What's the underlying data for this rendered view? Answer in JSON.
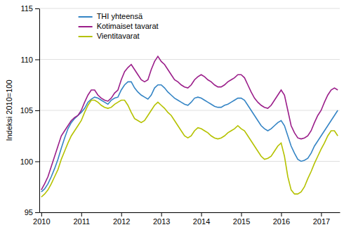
{
  "chart_data": {
    "type": "line",
    "ylabel": "Indeksi 2010=100",
    "x": [
      2010,
      2010.0833,
      2010.1667,
      2010.25,
      2010.3333,
      2010.4167,
      2010.5,
      2010.5833,
      2010.6667,
      2010.75,
      2010.8333,
      2010.9167,
      2011,
      2011.0833,
      2011.1667,
      2011.25,
      2011.3333,
      2011.4167,
      2011.5,
      2011.5833,
      2011.6667,
      2011.75,
      2011.8333,
      2011.9167,
      2012,
      2012.0833,
      2012.1667,
      2012.25,
      2012.3333,
      2012.4167,
      2012.5,
      2012.5833,
      2012.6667,
      2012.75,
      2012.8333,
      2012.9167,
      2013,
      2013.0833,
      2013.1667,
      2013.25,
      2013.3333,
      2013.4167,
      2013.5,
      2013.5833,
      2013.6667,
      2013.75,
      2013.8333,
      2013.9167,
      2014,
      2014.0833,
      2014.1667,
      2014.25,
      2014.3333,
      2014.4167,
      2014.5,
      2014.5833,
      2014.6667,
      2014.75,
      2014.8333,
      2014.9167,
      2015,
      2015.0833,
      2015.1667,
      2015.25,
      2015.3333,
      2015.4167,
      2015.5,
      2015.5833,
      2015.6667,
      2015.75,
      2015.8333,
      2015.9167,
      2016,
      2016.0833,
      2016.1667,
      2016.25,
      2016.3333,
      2016.4167,
      2016.5,
      2016.5833,
      2016.6667,
      2016.75,
      2016.8333,
      2016.9167,
      2017,
      2017.0833,
      2017.1667,
      2017.25,
      2017.3333,
      2017.4167
    ],
    "xlim": [
      2009.95,
      2017.4667
    ],
    "xticks": [
      2010,
      2011,
      2012,
      2013,
      2014,
      2015,
      2016,
      2017
    ],
    "ylim": [
      95,
      115
    ],
    "yticks": [
      95,
      100,
      105,
      110,
      115
    ],
    "grid": true,
    "legend": "upper left",
    "series": [
      {
        "name": "THI yhteensä",
        "color": "#3585c5",
        "values": [
          97.0,
          97.3,
          97.8,
          98.5,
          99.3,
          100.2,
          101.3,
          102.3,
          103.2,
          103.8,
          104.2,
          104.5,
          104.8,
          105.2,
          105.8,
          106.1,
          106.3,
          106.2,
          106.0,
          105.8,
          105.6,
          106.0,
          106.2,
          106.3,
          107.0,
          107.5,
          107.8,
          107.8,
          107.2,
          106.8,
          106.5,
          106.3,
          106.1,
          106.5,
          107.2,
          107.5,
          107.5,
          107.2,
          106.8,
          106.5,
          106.2,
          106.0,
          105.8,
          105.6,
          105.5,
          105.8,
          106.2,
          106.3,
          106.2,
          106.0,
          105.8,
          105.6,
          105.4,
          105.3,
          105.3,
          105.5,
          105.6,
          105.8,
          106.0,
          106.2,
          106.2,
          106.0,
          105.5,
          105.0,
          104.5,
          104.0,
          103.5,
          103.2,
          103.0,
          103.2,
          103.5,
          103.8,
          104.0,
          103.5,
          102.5,
          101.5,
          100.8,
          100.2,
          100.0,
          100.1,
          100.3,
          100.8,
          101.5,
          102.0,
          102.5,
          103.0,
          103.5,
          104.0,
          104.5,
          105.0
        ]
      },
      {
        "name": "Kotimaiset tavarat",
        "color": "#9b1e8a",
        "values": [
          97.2,
          97.8,
          98.5,
          99.5,
          100.5,
          101.5,
          102.5,
          103.0,
          103.5,
          104.0,
          104.3,
          104.5,
          105.0,
          105.8,
          106.5,
          107.0,
          107.0,
          106.5,
          106.2,
          106.0,
          105.9,
          106.2,
          106.7,
          107.0,
          108.0,
          108.8,
          109.2,
          109.5,
          109.0,
          108.5,
          108.0,
          107.8,
          108.0,
          109.0,
          109.8,
          110.3,
          109.8,
          109.5,
          109.0,
          108.5,
          108.0,
          107.8,
          107.5,
          107.3,
          107.2,
          107.5,
          108.0,
          108.3,
          108.5,
          108.3,
          108.0,
          107.8,
          107.5,
          107.3,
          107.3,
          107.5,
          107.8,
          108.0,
          108.2,
          108.5,
          108.5,
          108.2,
          107.5,
          106.8,
          106.2,
          105.8,
          105.5,
          105.3,
          105.2,
          105.5,
          106.0,
          106.5,
          107.0,
          106.5,
          105.0,
          103.5,
          102.8,
          102.3,
          102.2,
          102.3,
          102.5,
          103.0,
          103.8,
          104.5,
          105.0,
          105.8,
          106.5,
          107.0,
          107.2,
          107.0
        ]
      },
      {
        "name": "Vientitavarat",
        "color": "#b5c200",
        "values": [
          96.5,
          96.8,
          97.2,
          97.8,
          98.5,
          99.2,
          100.2,
          101.0,
          101.8,
          102.5,
          103.0,
          103.5,
          104.0,
          104.8,
          105.5,
          106.0,
          106.0,
          105.8,
          105.5,
          105.3,
          105.2,
          105.3,
          105.6,
          105.8,
          106.0,
          106.0,
          105.5,
          104.8,
          104.2,
          104.0,
          103.8,
          104.0,
          104.5,
          105.0,
          105.5,
          105.8,
          105.5,
          105.2,
          104.8,
          104.5,
          104.0,
          103.5,
          103.0,
          102.5,
          102.3,
          102.5,
          103.0,
          103.3,
          103.2,
          103.0,
          102.8,
          102.5,
          102.3,
          102.2,
          102.3,
          102.5,
          102.8,
          103.0,
          103.2,
          103.5,
          103.2,
          103.0,
          102.5,
          102.0,
          101.5,
          101.0,
          100.5,
          100.2,
          100.3,
          100.5,
          101.0,
          101.5,
          101.8,
          100.5,
          98.5,
          97.2,
          96.8,
          96.8,
          97.0,
          97.5,
          98.3,
          99.0,
          99.8,
          100.5,
          101.2,
          101.8,
          102.5,
          103.0,
          103.0,
          102.5
        ]
      }
    ]
  }
}
